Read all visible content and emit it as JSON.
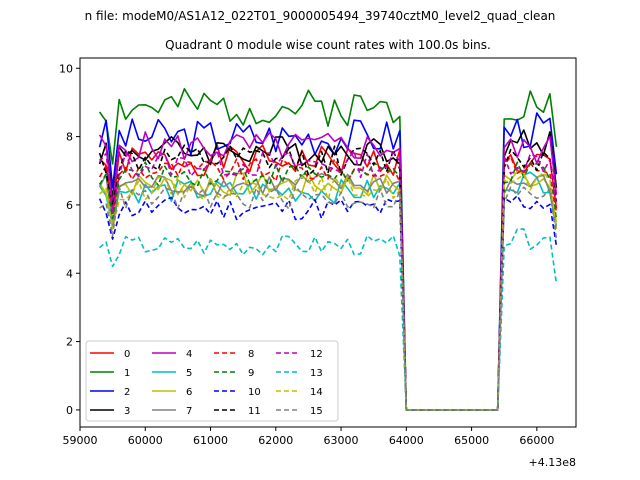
{
  "chart_data": {
    "type": "line",
    "suptitle": "n file: modeM0/AS1A12_022T01_9000005494_39740cztM0_level2_quad_clean",
    "title": "Quadrant 0 module wise count rates with 100.0s bins.",
    "xlabel": "",
    "ylabel": "",
    "x_offset_label": "+4.13e8",
    "xlim": [
      59000,
      66600
    ],
    "ylim": [
      -0.5,
      10.3
    ],
    "grid": false,
    "legend_location": "lower-left",
    "x_ticks": [
      59000,
      60000,
      61000,
      62000,
      63000,
      64000,
      65000,
      66000
    ],
    "x_tick_labels": [
      "59000",
      "60000",
      "61000",
      "62000",
      "63000",
      "64000",
      "65000",
      "66000"
    ],
    "y_ticks": [
      0,
      2,
      4,
      6,
      8,
      10
    ],
    "y_tick_labels": [
      "0",
      "2",
      "4",
      "6",
      "8",
      "10"
    ],
    "segments": [
      {
        "x_start": 59300,
        "x_end": 63900,
        "step": 100
      },
      {
        "x_start": 64000,
        "x_end": 65400,
        "step": 100
      },
      {
        "x_start": 65500,
        "x_end": 66300,
        "step": 100
      }
    ],
    "series": [
      {
        "name": "0",
        "color": "#ff0000",
        "dashed": false,
        "level": 7.3,
        "seg3_level": 7.2,
        "amp": 0.45,
        "dip": 5.8,
        "seed": 1
      },
      {
        "name": "1",
        "color": "#008000",
        "dashed": false,
        "level": 8.85,
        "seg3_level": 9.0,
        "amp": 0.55,
        "dip": 7.2,
        "seed": 2
      },
      {
        "name": "2",
        "color": "#0000ff",
        "dashed": false,
        "level": 8.0,
        "seg3_level": 8.2,
        "amp": 0.55,
        "dip": 6.5,
        "seed": 3
      },
      {
        "name": "3",
        "color": "#000000",
        "dashed": false,
        "level": 7.6,
        "seg3_level": 7.8,
        "amp": 0.45,
        "dip": 6.2,
        "seed": 4
      },
      {
        "name": "4",
        "color": "#bf00bf",
        "dashed": false,
        "level": 7.7,
        "seg3_level": 7.6,
        "amp": 0.45,
        "dip": 6.0,
        "seed": 5
      },
      {
        "name": "5",
        "color": "#00bfbf",
        "dashed": false,
        "level": 6.4,
        "seg3_level": 6.7,
        "amp": 0.35,
        "dip": 5.4,
        "seed": 6
      },
      {
        "name": "6",
        "color": "#bfbf00",
        "dashed": false,
        "level": 6.6,
        "seg3_level": 6.8,
        "amp": 0.35,
        "dip": 5.5,
        "seed": 7
      },
      {
        "name": "7",
        "color": "#808080",
        "dashed": false,
        "level": 6.6,
        "seg3_level": 6.6,
        "amp": 0.35,
        "dip": 5.3,
        "seed": 8
      },
      {
        "name": "8",
        "color": "#ff0000",
        "dashed": true,
        "level": 7.0,
        "seg3_level": 7.1,
        "amp": 0.35,
        "dip": 5.7,
        "seed": 9
      },
      {
        "name": "9",
        "color": "#008000",
        "dashed": true,
        "level": 6.9,
        "seg3_level": 6.9,
        "amp": 0.35,
        "dip": 5.6,
        "seed": 10
      },
      {
        "name": "10",
        "color": "#0000ff",
        "dashed": true,
        "level": 5.9,
        "seg3_level": 6.1,
        "amp": 0.35,
        "dip": 5.0,
        "seed": 11
      },
      {
        "name": "11",
        "color": "#000000",
        "dashed": true,
        "level": 7.3,
        "seg3_level": 7.4,
        "amp": 0.45,
        "dip": 6.0,
        "seed": 12
      },
      {
        "name": "12",
        "color": "#bf00bf",
        "dashed": true,
        "level": 7.2,
        "seg3_level": 7.3,
        "amp": 0.4,
        "dip": 5.8,
        "seed": 13
      },
      {
        "name": "13",
        "color": "#00bfbf",
        "dashed": true,
        "level": 4.8,
        "seg3_level": 5.0,
        "amp": 0.3,
        "dip": 4.2,
        "seed": 14
      },
      {
        "name": "14",
        "color": "#bfbf00",
        "dashed": true,
        "level": 6.5,
        "seg3_level": 6.6,
        "amp": 0.35,
        "dip": 5.3,
        "seed": 15
      },
      {
        "name": "15",
        "color": "#808080",
        "dashed": true,
        "level": 6.2,
        "seg3_level": 6.3,
        "amp": 0.35,
        "dip": 5.1,
        "seed": 16
      }
    ]
  }
}
